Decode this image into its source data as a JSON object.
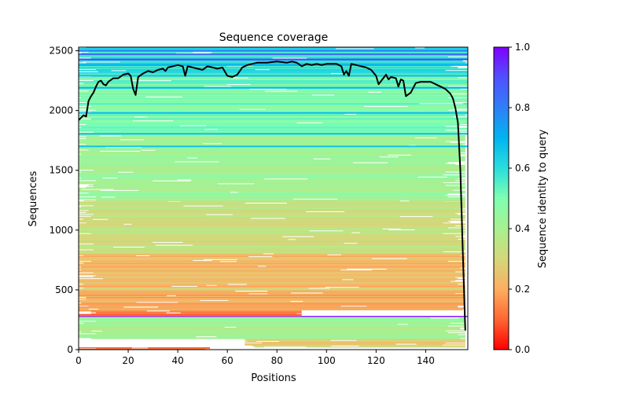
{
  "chart_data": {
    "type": "heatmap",
    "title": "Sequence coverage",
    "xlabel": "Positions",
    "ylabel": "Sequences",
    "xlim": [
      0,
      157
    ],
    "ylim": [
      0,
      2530
    ],
    "xticks": [
      0,
      20,
      40,
      60,
      80,
      100,
      120,
      140
    ],
    "yticks": [
      0,
      500,
      1000,
      1500,
      2000,
      2500
    ],
    "grid": false,
    "heatmap": {
      "n_sequences": 2530,
      "n_positions": 157,
      "color_by": "sequence identity to query",
      "identity_bands": [
        {
          "from": 0,
          "to": 20,
          "identity": 0.12,
          "x_from": 0,
          "x_to": 53,
          "note": "short low-identity fragments"
        },
        {
          "from": 20,
          "to": 90,
          "identity": 0.27,
          "x_from": 67,
          "x_to": 156
        },
        {
          "from": 90,
          "to": 270,
          "identity": 0.42,
          "x_from": 0,
          "x_to": 156
        },
        {
          "from": 275,
          "to": 282,
          "identity": 1.0,
          "x_from": 0,
          "x_to": 157,
          "note": "query sequence row"
        },
        {
          "from": 282,
          "to": 330,
          "identity": 0.13,
          "x_from": 0,
          "x_to": 90
        },
        {
          "from": 330,
          "to": 480,
          "identity": 0.2,
          "x_from": 0,
          "x_to": 156
        },
        {
          "from": 480,
          "to": 800,
          "identity": 0.24,
          "x_from": 0,
          "x_to": 156
        },
        {
          "from": 800,
          "to": 1250,
          "identity": 0.33,
          "x_from": 0,
          "x_to": 156
        },
        {
          "from": 1250,
          "to": 1800,
          "identity": 0.42,
          "x_from": 0,
          "x_to": 156
        },
        {
          "from": 1800,
          "to": 2300,
          "identity": 0.5,
          "x_from": 0,
          "x_to": 157
        },
        {
          "from": 2300,
          "to": 2530,
          "identity": 0.6,
          "x_from": 0,
          "x_to": 157
        }
      ],
      "highlight_rows": [
        {
          "row": 2427,
          "identity": 0.92
        },
        {
          "row": 2470,
          "identity": 0.85
        },
        {
          "row": 2500,
          "identity": 0.8
        },
        {
          "row": 2380,
          "identity": 0.7
        },
        {
          "row": 2290,
          "identity": 0.68
        },
        {
          "row": 2190,
          "identity": 0.7
        },
        {
          "row": 1980,
          "identity": 0.68
        },
        {
          "row": 1805,
          "identity": 0.68
        },
        {
          "row": 1700,
          "identity": 0.66
        }
      ]
    },
    "coverage_line": {
      "name": "coverage",
      "color": "#000000",
      "x": [
        0,
        1,
        2,
        3,
        4,
        5,
        6,
        7,
        8,
        9,
        10,
        11,
        12,
        14,
        16,
        18,
        20,
        21,
        22,
        23,
        24,
        26,
        28,
        30,
        32,
        34,
        35,
        36,
        38,
        40,
        42,
        43,
        44,
        46,
        48,
        50,
        52,
        54,
        56,
        58,
        60,
        62,
        64,
        66,
        68,
        70,
        72,
        74,
        76,
        80,
        84,
        86,
        88,
        90,
        92,
        94,
        96,
        98,
        100,
        104,
        106,
        107,
        108,
        109,
        110,
        114,
        116,
        118,
        120,
        121,
        124,
        125,
        126,
        128,
        129,
        130,
        131,
        132,
        134,
        136,
        138,
        140,
        142,
        144,
        146,
        148,
        150,
        151,
        152,
        153,
        154,
        155,
        156
      ],
      "y": [
        1920,
        1940,
        1960,
        1950,
        2080,
        2120,
        2150,
        2200,
        2240,
        2250,
        2220,
        2210,
        2240,
        2270,
        2270,
        2300,
        2310,
        2290,
        2180,
        2130,
        2280,
        2310,
        2330,
        2320,
        2340,
        2350,
        2330,
        2360,
        2370,
        2380,
        2370,
        2290,
        2370,
        2360,
        2350,
        2340,
        2370,
        2360,
        2350,
        2360,
        2290,
        2280,
        2300,
        2360,
        2380,
        2390,
        2400,
        2400,
        2400,
        2410,
        2400,
        2410,
        2400,
        2370,
        2390,
        2380,
        2390,
        2380,
        2390,
        2390,
        2370,
        2300,
        2330,
        2290,
        2390,
        2370,
        2360,
        2340,
        2290,
        2220,
        2300,
        2260,
        2280,
        2270,
        2200,
        2260,
        2250,
        2120,
        2150,
        2230,
        2240,
        2240,
        2240,
        2220,
        2200,
        2180,
        2140,
        2100,
        2020,
        1900,
        1500,
        800,
        160
      ]
    },
    "colorbar": {
      "label": "Sequence identity to query",
      "cmap": "rainbow_r",
      "range": [
        0.0,
        1.0
      ],
      "ticks": [
        "0.0",
        "0.2",
        "0.4",
        "0.6",
        "0.8",
        "1.0"
      ],
      "stops": [
        "#ff0000",
        "#ff6633",
        "#fdae61",
        "#d4d77a",
        "#a8f08f",
        "#7fffb0",
        "#2adddd",
        "#00b4f0",
        "#2f7ff7",
        "#5050ff",
        "#8000ff"
      ]
    }
  }
}
